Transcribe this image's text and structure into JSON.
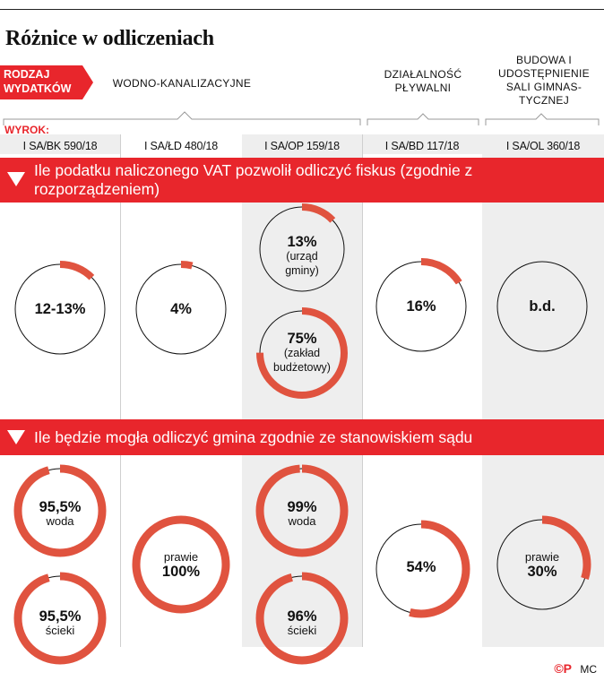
{
  "title": "Różnice w odliczeniach",
  "header": {
    "rodzaj": [
      "RODZAJ",
      "WYDATKÓW"
    ],
    "wyrok_label": "WYROK:",
    "categories": [
      {
        "label": "WODNO-KANALIZACYJNE"
      },
      {
        "label": "DZIAŁALNOŚĆ PŁYWALNI"
      },
      {
        "label": "BUDOWA I UDOSTĘPNIENIE SALI GIMNAS- TYCZNEJ"
      }
    ],
    "cases": [
      "I SA/BK 590/18",
      "I SA/ŁD 480/18",
      "I SA/OP 159/18",
      "I SA/BD 117/18",
      "I SA/OL 360/18"
    ]
  },
  "sections": {
    "s1": "Ile podatku naliczonego VAT pozwolił odliczyć fiskus (zgodnie z rozporządzeniem)",
    "s2": "Ile będzie mogła odliczyć gmina zgodnie ze stanowiskiem sądu"
  },
  "colors": {
    "accent": "#e8262c",
    "ring": "#e0533f",
    "shade": "#eeeeee"
  },
  "chart_data": {
    "type": "pie",
    "rings": [
      {
        "section": 1,
        "case": "I SA/BK 590/18",
        "value": 12.5,
        "label": "12-13%",
        "sub": ""
      },
      {
        "section": 1,
        "case": "I SA/ŁD 480/18",
        "value": 4,
        "label": "4%",
        "sub": ""
      },
      {
        "section": 1,
        "case": "I SA/OP 159/18",
        "value": 13,
        "label": "13%",
        "sub": "(urząd gminy)"
      },
      {
        "section": 1,
        "case": "I SA/OP 159/18",
        "value": 75,
        "label": "75%",
        "sub": "(zakład budżetowy)"
      },
      {
        "section": 1,
        "case": "I SA/BD 117/18",
        "value": 16,
        "label": "16%",
        "sub": ""
      },
      {
        "section": 1,
        "case": "I SA/OL 360/18",
        "value": null,
        "label": "b.d.",
        "sub": ""
      },
      {
        "section": 2,
        "case": "I SA/BK 590/18",
        "value": 95.5,
        "label": "95,5%",
        "sub": "woda"
      },
      {
        "section": 2,
        "case": "I SA/BK 590/18",
        "value": 95.5,
        "label": "95,5%",
        "sub": "ścieki"
      },
      {
        "section": 2,
        "case": "I SA/ŁD 480/18",
        "value": 100,
        "label": "100%",
        "sub": "prawie"
      },
      {
        "section": 2,
        "case": "I SA/OP 159/18",
        "value": 99,
        "label": "99%",
        "sub": "woda"
      },
      {
        "section": 2,
        "case": "I SA/OP 159/18",
        "value": 96,
        "label": "96%",
        "sub": "ścieki"
      },
      {
        "section": 2,
        "case": "I SA/BD 117/18",
        "value": 54,
        "label": "54%",
        "sub": ""
      },
      {
        "section": 2,
        "case": "I SA/OL 360/18",
        "value": 30,
        "label": "30%",
        "sub": "prawie"
      }
    ]
  },
  "footer": {
    "logo": "©P",
    "author": "MC"
  }
}
